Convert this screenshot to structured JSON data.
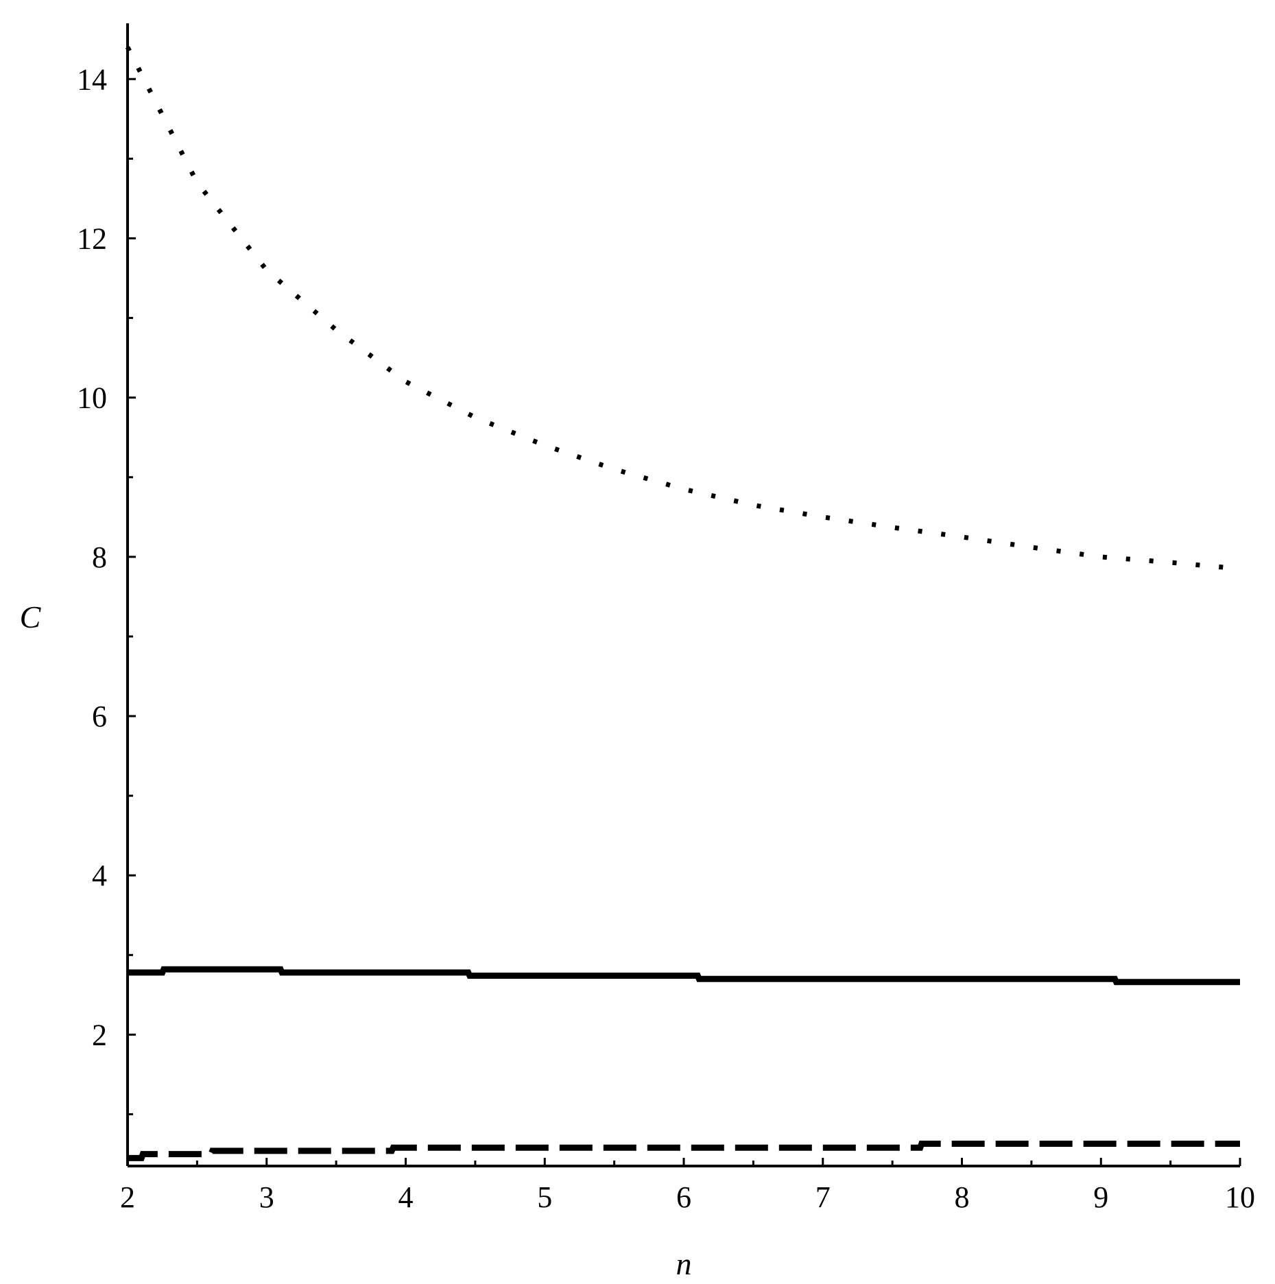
{
  "chart_data": {
    "type": "line",
    "xlabel": "n",
    "ylabel": "C",
    "xlim": [
      2,
      10
    ],
    "ylim": [
      0.35,
      14.7
    ],
    "x_ticks": [
      2,
      3,
      4,
      5,
      6,
      7,
      8,
      9,
      10
    ],
    "x_tick_labels": [
      "2",
      "3",
      "4",
      "5",
      "6",
      "7",
      "8",
      "9",
      "10"
    ],
    "y_ticks": [
      2,
      4,
      6,
      8,
      10,
      12,
      14
    ],
    "y_tick_labels": [
      "2",
      "4",
      "6",
      "8",
      "10",
      "12",
      "14"
    ],
    "grid": false,
    "series": [
      {
        "style": "dotted",
        "color": "#000000",
        "x": [
          2,
          2.5,
          3,
          3.5,
          4,
          4.5,
          5,
          5.5,
          6,
          6.5,
          7,
          7.5,
          8,
          8.5,
          9,
          9.5,
          10
        ],
        "y": [
          14.4,
          12.7,
          11.6,
          10.85,
          10.2,
          9.75,
          9.4,
          9.1,
          8.85,
          8.65,
          8.5,
          8.37,
          8.25,
          8.12,
          8.0,
          7.93,
          7.85
        ]
      },
      {
        "style": "solid",
        "color": "#000000",
        "x": [
          2,
          2.25,
          2.26,
          3.1,
          3.11,
          4.45,
          4.46,
          6.1,
          6.11,
          9.1,
          9.11,
          10
        ],
        "y": [
          2.78,
          2.78,
          2.82,
          2.82,
          2.78,
          2.78,
          2.74,
          2.74,
          2.7,
          2.7,
          2.66,
          2.66
        ]
      },
      {
        "style": "dashed",
        "color": "#000000",
        "x": [
          2,
          2.1,
          2.11,
          2.6,
          2.61,
          3.9,
          3.91,
          7.7,
          7.71,
          10
        ],
        "y": [
          0.45,
          0.45,
          0.5,
          0.5,
          0.54,
          0.54,
          0.58,
          0.58,
          0.63,
          0.63
        ]
      }
    ]
  }
}
